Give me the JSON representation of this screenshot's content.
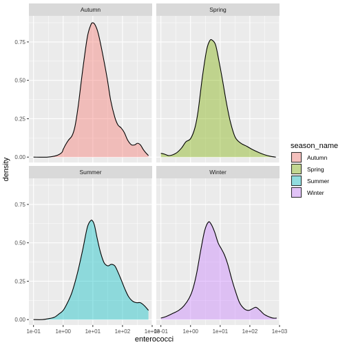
{
  "chart_data": {
    "type": "area",
    "xlabel": "enterococci",
    "ylabel": "density",
    "x_scale": "log10",
    "xlim": [
      0.07,
      1000
    ],
    "ylim": [
      -0.035,
      0.92
    ],
    "x_ticks": [
      0.1,
      1,
      10,
      100,
      1000
    ],
    "x_tick_labels": [
      "1e-01",
      "1e+00",
      "1e+01",
      "1e+02",
      "1e+03"
    ],
    "y_ticks": [
      0,
      0.25,
      0.5,
      0.75
    ],
    "y_tick_labels": [
      "0.00",
      "0.25",
      "0.50",
      "0.75"
    ],
    "grid": true,
    "legend": {
      "title": "season_name",
      "position": "right"
    },
    "panels": [
      {
        "name": "Autumn",
        "color": "#F8766D",
        "x": [
          0.1,
          0.3,
          0.6,
          0.9,
          1.0,
          1.2,
          1.5,
          2.0,
          2.5,
          3.2,
          4.5,
          6.5,
          8.5,
          10,
          12,
          15,
          20,
          30,
          40,
          55,
          70,
          90,
          115,
          150,
          200,
          260,
          320,
          400,
          500,
          600,
          750
        ],
        "y": [
          0.0,
          0.0,
          0.01,
          0.03,
          0.05,
          0.08,
          0.11,
          0.14,
          0.2,
          0.33,
          0.56,
          0.78,
          0.86,
          0.875,
          0.86,
          0.81,
          0.7,
          0.52,
          0.37,
          0.26,
          0.21,
          0.19,
          0.16,
          0.11,
          0.08,
          0.08,
          0.09,
          0.08,
          0.05,
          0.03,
          0.01
        ]
      },
      {
        "name": "Spring",
        "color": "#7CAE00",
        "x": [
          0.1,
          0.13,
          0.18,
          0.25,
          0.35,
          0.5,
          0.7,
          1.0,
          1.4,
          1.8,
          2.5,
          3.5,
          4.5,
          5.5,
          7,
          9,
          12,
          16,
          22,
          32,
          50,
          80,
          120,
          200,
          320,
          500,
          750
        ],
        "y": [
          0.025,
          0.02,
          0.01,
          0.015,
          0.03,
          0.06,
          0.1,
          0.12,
          0.19,
          0.3,
          0.52,
          0.7,
          0.76,
          0.76,
          0.73,
          0.63,
          0.5,
          0.36,
          0.23,
          0.13,
          0.09,
          0.07,
          0.05,
          0.03,
          0.015,
          0.005,
          0.0
        ]
      },
      {
        "name": "Summer",
        "color": "#00BFC4",
        "x": [
          0.1,
          0.2,
          0.3,
          0.5,
          0.7,
          1.0,
          1.4,
          2.0,
          3.0,
          4.5,
          6.5,
          8.5,
          10,
          11.5,
          14,
          18,
          24,
          32,
          42,
          55,
          70,
          90,
          120,
          160,
          220,
          300,
          400,
          550,
          750
        ],
        "y": [
          0.0,
          0.0,
          0.005,
          0.015,
          0.035,
          0.06,
          0.11,
          0.18,
          0.3,
          0.45,
          0.6,
          0.645,
          0.64,
          0.61,
          0.53,
          0.44,
          0.37,
          0.35,
          0.36,
          0.35,
          0.31,
          0.26,
          0.2,
          0.15,
          0.12,
          0.11,
          0.11,
          0.09,
          0.06
        ]
      },
      {
        "name": "Winter",
        "color": "#C77CFF",
        "x": [
          0.1,
          0.15,
          0.25,
          0.4,
          0.6,
          0.9,
          1.2,
          1.6,
          2.2,
          3.0,
          4.0,
          5.0,
          6.5,
          8.5,
          11,
          14,
          18,
          24,
          32,
          45,
          65,
          90,
          120,
          160,
          220,
          300,
          420,
          600,
          800
        ],
        "y": [
          0.01,
          0.02,
          0.04,
          0.06,
          0.09,
          0.14,
          0.2,
          0.3,
          0.45,
          0.58,
          0.635,
          0.62,
          0.57,
          0.5,
          0.46,
          0.42,
          0.36,
          0.27,
          0.19,
          0.11,
          0.07,
          0.06,
          0.07,
          0.08,
          0.06,
          0.035,
          0.02,
          0.01,
          0.01
        ]
      }
    ]
  }
}
